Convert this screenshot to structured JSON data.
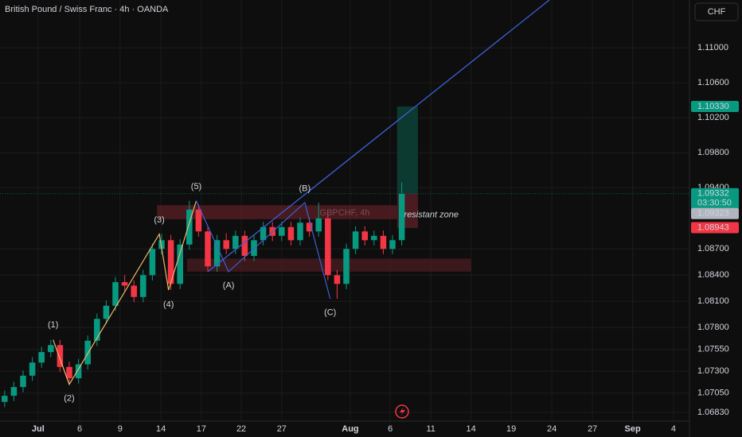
{
  "chart_data": {
    "type": "candlestick",
    "title": "British Pound / Swiss Franc · 4h · OANDA",
    "currency": "CHF",
    "watermark": "GBPCHF, 4h",
    "up_color": "#089981",
    "down_color": "#f23645",
    "xlim": [
      0,
      298.6
    ],
    "ylim": [
      1.0673,
      1.11548
    ],
    "xticks": [
      {
        "value": 16.5,
        "label": "Jul"
      },
      {
        "value": 34.5,
        "label": "6"
      },
      {
        "value": 52,
        "label": "9"
      },
      {
        "value": 69.7,
        "label": "14"
      },
      {
        "value": 87.2,
        "label": "17"
      },
      {
        "value": 104.5,
        "label": "22"
      },
      {
        "value": 122,
        "label": "27"
      },
      {
        "value": 151.7,
        "label": "Aug"
      },
      {
        "value": 169,
        "label": "6"
      },
      {
        "value": 186.6,
        "label": "11"
      },
      {
        "value": 204,
        "label": "14"
      },
      {
        "value": 221.4,
        "label": "19"
      },
      {
        "value": 239,
        "label": "24"
      },
      {
        "value": 256.6,
        "label": "27"
      },
      {
        "value": 274,
        "label": "Sep"
      },
      {
        "value": 291.7,
        "label": "4"
      }
    ],
    "yticks": [
      {
        "value": 1.0683,
        "label": "1.06830"
      },
      {
        "value": 1.0705,
        "label": "1.07050"
      },
      {
        "value": 1.073,
        "label": "1.07300"
      },
      {
        "value": 1.0755,
        "label": "1.07550"
      },
      {
        "value": 1.078,
        "label": "1.07800"
      },
      {
        "value": 1.081,
        "label": "1.08100"
      },
      {
        "value": 1.084,
        "label": "1.08400"
      },
      {
        "value": 1.087,
        "label": "1.08700"
      },
      {
        "value": 1.094,
        "label": "1.09400"
      },
      {
        "value": 1.098,
        "label": "1.09800"
      },
      {
        "value": 1.102,
        "label": "1.10200"
      },
      {
        "value": 1.106,
        "label": "1.10600"
      },
      {
        "value": 1.11,
        "label": "1.11000"
      }
    ],
    "grid": true,
    "candles": {
      "x": [
        2,
        6,
        10,
        14,
        18,
        22,
        26,
        30,
        34,
        38,
        42,
        46,
        50,
        54,
        58,
        62,
        66,
        70,
        74,
        78,
        82,
        86,
        90,
        94,
        98,
        102,
        106,
        110,
        114,
        118,
        122,
        126,
        130,
        134,
        138,
        142,
        146,
        150,
        154,
        158,
        162,
        166,
        170,
        174
      ],
      "open": [
        1.0695,
        1.0702,
        1.0712,
        1.0725,
        1.074,
        1.0752,
        1.076,
        1.0735,
        1.0722,
        1.0738,
        1.0765,
        1.079,
        1.0805,
        1.0832,
        1.0828,
        1.0815,
        1.084,
        1.087,
        1.088,
        1.083,
        1.0875,
        1.0915,
        1.089,
        1.085,
        1.088,
        1.087,
        1.0885,
        1.0862,
        1.088,
        1.0895,
        1.0885,
        1.0895,
        1.088,
        1.09,
        1.089,
        1.0905,
        1.084,
        1.083,
        1.087,
        1.089,
        1.088,
        1.0885,
        1.087,
        1.088
      ],
      "high": [
        1.0708,
        1.0718,
        1.0731,
        1.0746,
        1.0758,
        1.0766,
        1.0766,
        1.0741,
        1.0744,
        1.0771,
        1.0796,
        1.0811,
        1.0838,
        1.084,
        1.0834,
        1.0846,
        1.0876,
        1.0887,
        1.0886,
        1.0881,
        1.0925,
        1.0921,
        1.0896,
        1.0886,
        1.0888,
        1.0891,
        1.0891,
        1.0886,
        1.0901,
        1.0901,
        1.0901,
        1.0901,
        1.0906,
        1.0906,
        1.0923,
        1.0911,
        1.0846,
        1.0876,
        1.0896,
        1.0896,
        1.0891,
        1.0891,
        1.0886,
        1.0946
      ],
      "low": [
        1.0689,
        1.0696,
        1.0706,
        1.0719,
        1.0734,
        1.0746,
        1.0729,
        1.0715,
        1.0716,
        1.0732,
        1.0759,
        1.0784,
        1.0799,
        1.0822,
        1.0809,
        1.0809,
        1.0834,
        1.0864,
        1.0823,
        1.0824,
        1.0869,
        1.0884,
        1.0844,
        1.0844,
        1.0864,
        1.0864,
        1.0856,
        1.0856,
        1.0874,
        1.0879,
        1.0879,
        1.0874,
        1.0874,
        1.0884,
        1.0884,
        1.0834,
        1.0813,
        1.0824,
        1.0864,
        1.0874,
        1.0874,
        1.0864,
        1.0864,
        1.0874
      ],
      "close": [
        1.0702,
        1.0712,
        1.0725,
        1.074,
        1.0752,
        1.076,
        1.0735,
        1.0722,
        1.0738,
        1.0765,
        1.079,
        1.0805,
        1.0832,
        1.0828,
        1.0815,
        1.084,
        1.087,
        1.088,
        1.083,
        1.0875,
        1.0915,
        1.089,
        1.085,
        1.088,
        1.087,
        1.0885,
        1.0862,
        1.088,
        1.0895,
        1.0885,
        1.0895,
        1.088,
        1.09,
        1.089,
        1.0905,
        1.084,
        1.083,
        1.087,
        1.089,
        1.088,
        1.0885,
        1.087,
        1.088,
        1.0933
      ]
    },
    "zones": [
      {
        "x": [
          68,
          172
        ],
        "y": [
          1.0904,
          1.092
        ],
        "color": "#5a1f26"
      },
      {
        "x": [
          81,
          204
        ],
        "y": [
          1.0844,
          1.0859
        ],
        "color": "#4a1c22"
      }
    ],
    "zone_label": {
      "text": "resistant zone",
      "x": 175,
      "y": 1.0909
    },
    "position": {
      "x": [
        172,
        181
      ],
      "target": 1.1033,
      "entry": 1.09332,
      "stop": 1.0894
    },
    "trendline": {
      "color": "#3d5fd6",
      "points": [
        [
          90,
          1.0844
        ],
        [
          238,
          1.1155
        ]
      ]
    },
    "waves": [
      {
        "color": "#e8b86a",
        "points": [
          [
            23,
            1.0766
          ],
          [
            30,
            1.0715
          ],
          [
            69,
            1.0887
          ],
          [
            73,
            1.0823
          ],
          [
            85,
            1.0925
          ]
        ],
        "labels": [
          {
            "text": "(1)",
            "x": 23,
            "y": 1.0783
          },
          {
            "text": "(2)",
            "x": 30,
            "y": 1.0699
          },
          {
            "text": "(3)",
            "x": 69,
            "y": 1.0903
          },
          {
            "text": "(4)",
            "x": 73,
            "y": 1.0806
          },
          {
            "text": "(5)",
            "x": 85,
            "y": 1.0941
          }
        ]
      },
      {
        "color": "#3d5fd6",
        "points": [
          [
            85,
            1.0925
          ],
          [
            99,
            1.0844
          ],
          [
            132,
            1.0923
          ],
          [
            143,
            1.0813
          ]
        ],
        "labels": [
          {
            "text": "(A)",
            "x": 99,
            "y": 1.0828
          },
          {
            "text": "(B)",
            "x": 132,
            "y": 1.0939
          },
          {
            "text": "(C)",
            "x": 143,
            "y": 1.0797
          }
        ]
      }
    ],
    "price_labels": [
      {
        "value": 1.1033,
        "label": "1.10330",
        "color": "#089981"
      },
      {
        "value": 1.09332,
        "label": "1.09332",
        "color": "#089981",
        "countdown": "03:30:50"
      },
      {
        "value": 1.09323,
        "label": "1.09323",
        "color": "#b2b5be"
      },
      {
        "value": 1.08943,
        "label": "1.08943",
        "color": "#f23645"
      }
    ]
  }
}
